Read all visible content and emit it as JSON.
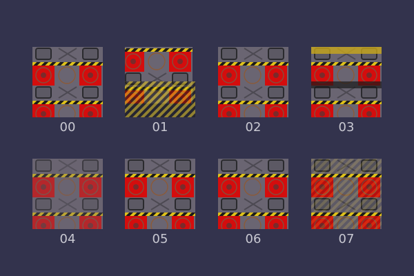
{
  "textures": [
    {
      "label": "00"
    },
    {
      "label": "01"
    },
    {
      "label": "02"
    },
    {
      "label": "03"
    },
    {
      "label": "04"
    },
    {
      "label": "05"
    },
    {
      "label": "06"
    },
    {
      "label": "07"
    }
  ],
  "colors": {
    "background": "#33334d",
    "red": "#d40d0d",
    "grey": "#6a6572",
    "hazard_yellow": "#e0c21a",
    "label": "#c9c9d2"
  }
}
